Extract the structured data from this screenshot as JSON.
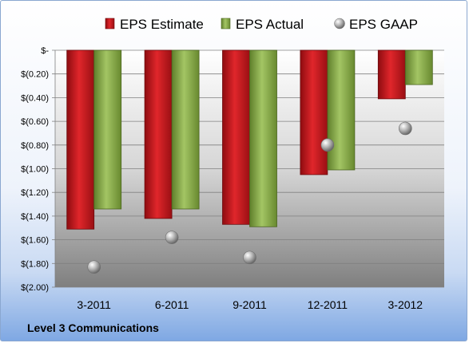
{
  "company_label": "Level 3 Communications",
  "chart_data": {
    "type": "bar",
    "categories": [
      "3-2011",
      "6-2011",
      "9-2011",
      "12-2011",
      "3-2012"
    ],
    "series": [
      {
        "name": "EPS Estimate",
        "kind": "bar",
        "color": "#c8161d",
        "values": [
          -1.51,
          -1.42,
          -1.47,
          -1.05,
          -0.41
        ]
      },
      {
        "name": "EPS Actual",
        "kind": "bar",
        "color": "#8db04a",
        "values": [
          -1.34,
          -1.34,
          -1.49,
          -1.01,
          -0.29
        ]
      },
      {
        "name": "EPS GAAP",
        "kind": "marker",
        "color": "#a9a9a9",
        "values": [
          -1.83,
          -1.58,
          -1.75,
          -0.8,
          -0.66
        ]
      }
    ],
    "yticks": [
      {
        "value": 0,
        "label": "$-"
      },
      {
        "value": -0.2,
        "label": "$(0.20)"
      },
      {
        "value": -0.4,
        "label": "$(0.40)"
      },
      {
        "value": -0.6,
        "label": "$(0.60)"
      },
      {
        "value": -0.8,
        "label": "$(0.80)"
      },
      {
        "value": -1.0,
        "label": "$(1.00)"
      },
      {
        "value": -1.2,
        "label": "$(1.20)"
      },
      {
        "value": -1.4,
        "label": "$(1.40)"
      },
      {
        "value": -1.6,
        "label": "$(1.60)"
      },
      {
        "value": -1.8,
        "label": "$(1.80)"
      },
      {
        "value": -2.0,
        "label": "$(2.00)"
      }
    ],
    "ylim": [
      -2.0,
      0
    ],
    "grid": true,
    "legend_position": "top",
    "title": "",
    "xlabel": "",
    "ylabel": ""
  }
}
